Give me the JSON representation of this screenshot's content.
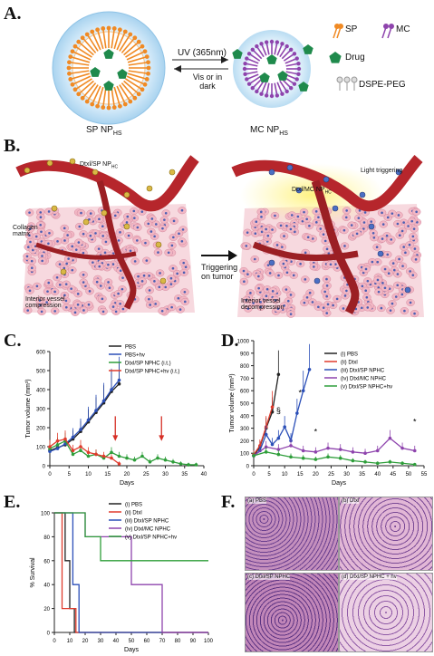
{
  "panels": {
    "A": "A.",
    "B": "B.",
    "C": "C.",
    "D": "D.",
    "E": "E.",
    "F": "F."
  },
  "panel_a": {
    "arrow_top": "UV (365nm)",
    "arrow_bottom": "Vis or in dark",
    "left_name": "SP NP",
    "left_sub": "HS",
    "right_name": "MC NP",
    "right_sub": "HS",
    "legend": {
      "sp": "SP",
      "mc": "MC",
      "drug": "Drug",
      "peg": "DSPE-PEG"
    },
    "colors": {
      "sp": "#f08a24",
      "mc": "#8e44ad",
      "drug": "#1f8a4c",
      "shell": "#9ecbe8"
    }
  },
  "panel_b": {
    "label_np": "Dtxl/SP NP",
    "label_np_sub": "HC",
    "label_mc": "Dtxl/MC NP",
    "label_mc_sub": "HC",
    "light": "Light triggering",
    "collagen": "Collagen matrix",
    "triggering": "Triggering on tumor",
    "compression": "Interior vessel compression",
    "decompression": "Interior vessel decompression"
  },
  "chart_data": [
    {
      "type": "line",
      "panel": "C",
      "ylabel": "Tumor volume (mm³)",
      "xlabel": "Days",
      "xlim": [
        0,
        40
      ],
      "ylim": [
        0,
        600
      ],
      "xticks": [
        0,
        5,
        10,
        15,
        20,
        25,
        30,
        35,
        40
      ],
      "yticks": [
        0,
        100,
        200,
        300,
        400,
        500,
        600
      ],
      "legend": [
        "PBS",
        "PBS+hv",
        "Dtxl/SP NPHC (i.t.)",
        "Dtxl/SP NPHC+hv (i.t.)"
      ],
      "arrows_at_days": [
        17,
        29
      ],
      "series": [
        {
          "name": "PBS",
          "color": "#222222",
          "x": [
            0,
            2,
            4,
            6,
            8,
            10,
            12,
            14,
            16,
            18
          ],
          "y": [
            80,
            95,
            110,
            140,
            180,
            230,
            280,
            330,
            390,
            430
          ]
        },
        {
          "name": "PBS+hv",
          "color": "#2b4fb8",
          "x": [
            0,
            2,
            4,
            6,
            8,
            10,
            12,
            14,
            16,
            18
          ],
          "y": [
            75,
            90,
            115,
            150,
            190,
            240,
            290,
            340,
            400,
            450
          ]
        },
        {
          "name": "Dtxl/SP NPHC (i.t.)",
          "color": "#2e9e3a",
          "x": [
            0,
            2,
            4,
            6,
            8,
            10,
            12,
            14,
            16,
            18,
            20,
            22,
            24,
            26,
            28,
            30,
            32,
            34,
            36,
            38
          ],
          "y": [
            90,
            110,
            130,
            60,
            80,
            50,
            60,
            40,
            70,
            50,
            40,
            30,
            50,
            20,
            40,
            30,
            20,
            10,
            5,
            5
          ]
        },
        {
          "name": "Dtxl/SP NPHC+hv (i.t.)",
          "color": "#e03a2c",
          "x": [
            0,
            2,
            4,
            6,
            8,
            10,
            12,
            14,
            16,
            18
          ],
          "y": [
            100,
            130,
            140,
            80,
            100,
            70,
            60,
            50,
            40,
            10
          ]
        }
      ]
    },
    {
      "type": "line",
      "panel": "D",
      "ylabel": "Tumor volume (mm³)",
      "xlabel": "Days",
      "xlim": [
        0,
        55
      ],
      "ylim": [
        0,
        1000
      ],
      "xticks": [
        0,
        5,
        10,
        15,
        20,
        25,
        30,
        35,
        40,
        45,
        50,
        55
      ],
      "yticks": [
        0,
        100,
        200,
        300,
        400,
        500,
        600,
        700,
        800,
        900,
        1000
      ],
      "legend": [
        "(i) PBS",
        "(ii) Dtxl",
        "(iii) Dtxl/SP NPHC",
        "(iv) Dtxl/MC NPHC",
        "(v) Dtxl/SP NPHC+hv"
      ],
      "annotations": [
        "*",
        "§",
        "*",
        "*"
      ],
      "series": [
        {
          "name": "PBS",
          "color": "#222222",
          "x": [
            0,
            2,
            4,
            6,
            8
          ],
          "y": [
            80,
            150,
            300,
            430,
            730
          ]
        },
        {
          "name": "Dtxl",
          "color": "#e03a2c",
          "x": [
            0,
            2,
            4,
            6
          ],
          "y": [
            90,
            160,
            310,
            470
          ]
        },
        {
          "name": "Dtxl/SP NPHC",
          "color": "#2b4fb8",
          "x": [
            0,
            2,
            4,
            6,
            8,
            10,
            12,
            14,
            16,
            18
          ],
          "y": [
            80,
            120,
            250,
            170,
            220,
            310,
            200,
            420,
            600,
            770
          ]
        },
        {
          "name": "Dtxl/MC NPHC",
          "color": "#8e44ad",
          "x": [
            0,
            4,
            8,
            12,
            16,
            20,
            24,
            28,
            32,
            36,
            40,
            44,
            48,
            52
          ],
          "y": [
            80,
            150,
            130,
            160,
            120,
            110,
            140,
            130,
            110,
            100,
            120,
            220,
            140,
            120
          ]
        },
        {
          "name": "Dtxl/SP NPHC+hv",
          "color": "#2e9e3a",
          "x": [
            0,
            4,
            8,
            12,
            16,
            20,
            24,
            28,
            32,
            36,
            40,
            44,
            48,
            52
          ],
          "y": [
            80,
            110,
            90,
            70,
            60,
            50,
            70,
            60,
            40,
            30,
            20,
            30,
            20,
            10
          ]
        }
      ]
    },
    {
      "type": "line",
      "panel": "E",
      "ylabel": "% Survival",
      "xlabel": "Days",
      "xlim": [
        0,
        100
      ],
      "ylim": [
        0,
        100
      ],
      "xticks": [
        0,
        10,
        20,
        30,
        40,
        50,
        60,
        70,
        80,
        90,
        100
      ],
      "yticks": [
        0,
        20,
        40,
        60,
        80,
        100
      ],
      "legend": [
        "(i) PBS",
        "(ii) Dtxl",
        "(iii) Dtxl/SP NPHC",
        "(iv) Dtxl/MC NPHC",
        "(v) Dtxl/SP NPHC+hv"
      ],
      "series": [
        {
          "name": "PBS",
          "color": "#222222",
          "x": [
            0,
            7,
            7,
            10,
            10,
            13,
            13,
            100
          ],
          "y": [
            100,
            100,
            60,
            60,
            20,
            20,
            0,
            0
          ]
        },
        {
          "name": "Dtxl",
          "color": "#e03a2c",
          "x": [
            0,
            5,
            5,
            8,
            8,
            14,
            14,
            100
          ],
          "y": [
            100,
            100,
            20,
            20,
            20,
            20,
            0,
            0
          ]
        },
        {
          "name": "Dtxl/SP NPHC",
          "color": "#2b4fb8",
          "x": [
            0,
            12,
            12,
            16,
            16,
            100
          ],
          "y": [
            100,
            100,
            40,
            40,
            0,
            0
          ]
        },
        {
          "name": "Dtxl/MC NPHC",
          "color": "#8e44ad",
          "x": [
            0,
            20,
            20,
            50,
            50,
            70,
            70,
            100
          ],
          "y": [
            100,
            100,
            80,
            80,
            40,
            40,
            0,
            0
          ]
        },
        {
          "name": "Dtxl/SP NPHC+hv",
          "color": "#2e9e3a",
          "x": [
            0,
            20,
            20,
            30,
            30,
            100
          ],
          "y": [
            100,
            100,
            80,
            80,
            60,
            60
          ]
        }
      ]
    }
  ],
  "panel_f": {
    "captions": [
      "(a) PBS",
      "(b) Dtxl",
      "(c) Dtxl/SP NPHC",
      "(d) Dtxl/SP NPHC + hv"
    ]
  }
}
